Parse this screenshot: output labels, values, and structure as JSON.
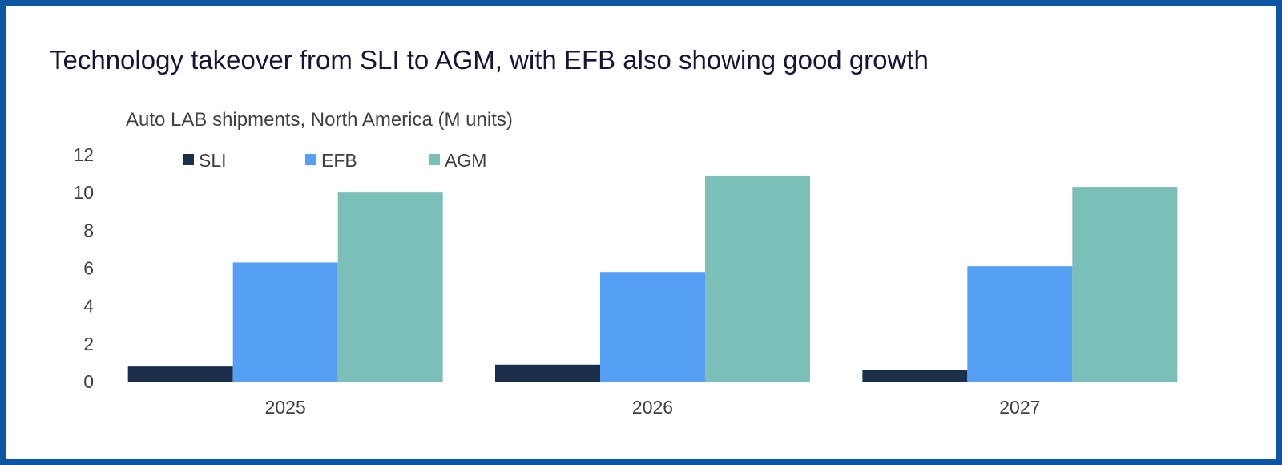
{
  "title": "Technology takeover from SLI to AGM, with EFB also showing good growth",
  "chart_data": {
    "type": "bar",
    "title": "Technology takeover from SLI to AGM, with EFB also showing good growth",
    "subtitle": "Auto LAB shipments, North America (M units)",
    "xlabel": "",
    "ylabel": "",
    "categories": [
      "2025",
      "2026",
      "2027"
    ],
    "series": [
      {
        "name": "SLI",
        "values": [
          0.8,
          0.9,
          0.6
        ],
        "color": "#1c2f4a"
      },
      {
        "name": "EFB",
        "values": [
          6.3,
          5.8,
          6.1
        ],
        "color": "#559ff5"
      },
      {
        "name": "AGM",
        "values": [
          10.0,
          10.9,
          10.3
        ],
        "color": "#7abfb8"
      }
    ],
    "ylim": [
      0,
      12
    ],
    "yticks": [
      0,
      2,
      4,
      6,
      8,
      10,
      12
    ],
    "grid": false,
    "legend": "top-left"
  }
}
